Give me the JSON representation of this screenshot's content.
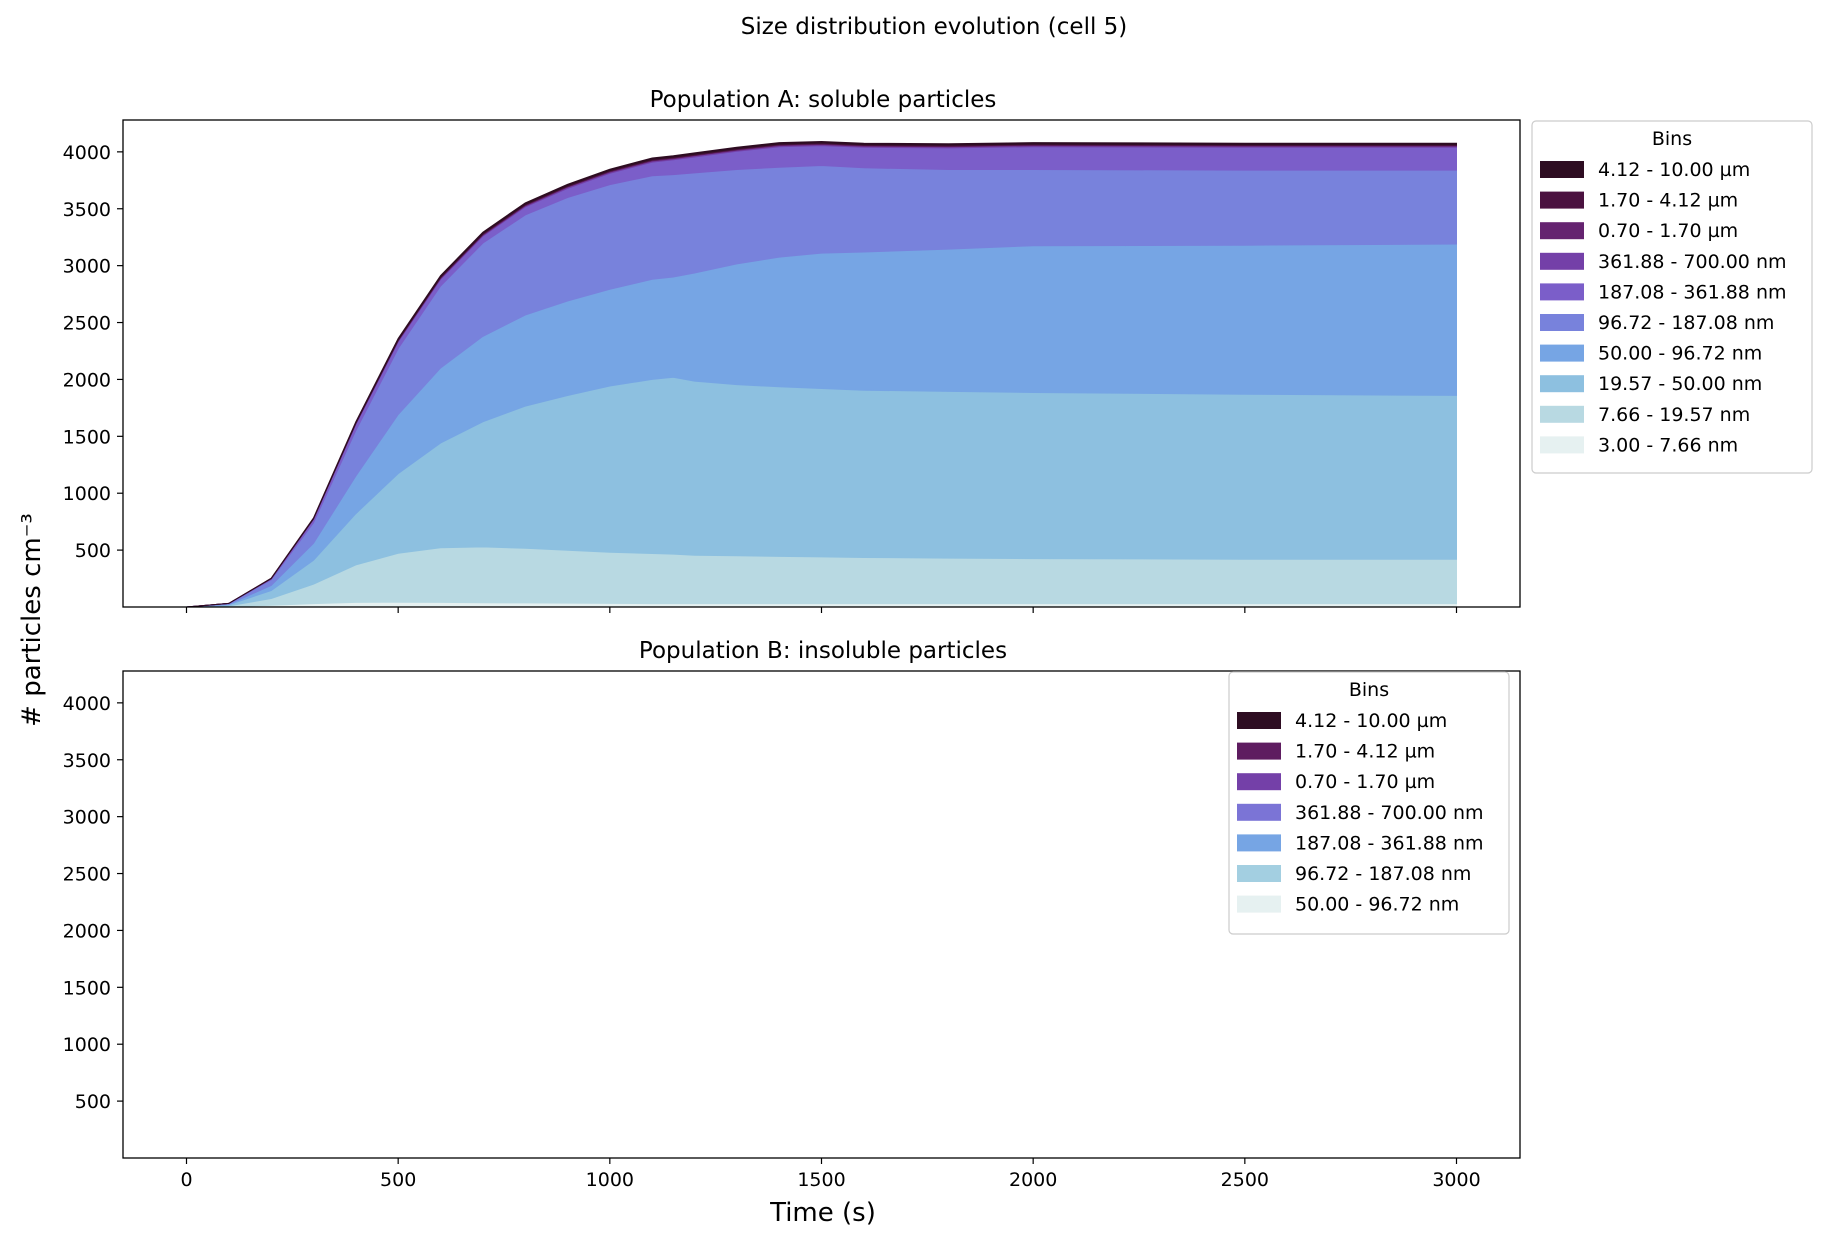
{
  "suptitle": "Size distribution evolution (cell 5)",
  "xlabel": "Time (s)",
  "ylabel": "# particles cm⁻³",
  "chart_data": [
    {
      "type": "area",
      "title": "Population A: soluble particles",
      "xlim": [
        -150,
        3150
      ],
      "ylim": [
        0,
        4280
      ],
      "xticks": [
        0,
        500,
        1000,
        1500,
        2000,
        2500,
        3000
      ],
      "yticks": [
        500,
        1000,
        1500,
        2000,
        2500,
        3000,
        3500,
        4000
      ],
      "show_xtick_labels": false,
      "grid": false,
      "legend": {
        "title": "Bins",
        "placement": "outside-upper-right"
      },
      "x": [
        0,
        100,
        200,
        300,
        400,
        500,
        600,
        700,
        800,
        900,
        1000,
        1100,
        1150,
        1200,
        1300,
        1400,
        1500,
        1600,
        1800,
        2000,
        2500,
        3000
      ],
      "series": [
        {
          "name": "3.00 - 7.66 nm",
          "color": "#e6f1f1",
          "values": [
            0,
            2,
            15,
            30,
            40,
            42,
            40,
            38,
            36,
            34,
            32,
            30,
            30,
            30,
            30,
            30,
            30,
            30,
            30,
            30,
            30,
            30
          ]
        },
        {
          "name": "7.66 - 19.57 nm",
          "color": "#b8d9e2",
          "values": [
            0,
            8,
            60,
            170,
            330,
            430,
            480,
            490,
            480,
            465,
            450,
            440,
            435,
            425,
            420,
            415,
            410,
            405,
            400,
            395,
            390,
            390
          ]
        },
        {
          "name": "19.57 - 50.00 nm",
          "color": "#8dc0e0",
          "values": [
            0,
            10,
            70,
            210,
            450,
            700,
            920,
            1100,
            1250,
            1360,
            1460,
            1530,
            1555,
            1530,
            1505,
            1490,
            1480,
            1470,
            1465,
            1460,
            1450,
            1440
          ]
        },
        {
          "name": "50.00 - 96.72 nm",
          "color": "#76a5e4",
          "values": [
            0,
            5,
            45,
            150,
            330,
            520,
            660,
            750,
            800,
            830,
            850,
            880,
            880,
            950,
            1060,
            1140,
            1190,
            1215,
            1250,
            1290,
            1310,
            1330
          ]
        },
        {
          "name": "96.72 - 187.08 nm",
          "color": "#7882dc",
          "values": [
            0,
            6,
            50,
            180,
            400,
            580,
            720,
            820,
            880,
            910,
            920,
            910,
            900,
            880,
            830,
            790,
            770,
            740,
            700,
            670,
            660,
            650
          ]
        },
        {
          "name": "187.08 - 361.88 nm",
          "color": "#7b5ec9",
          "values": [
            0,
            1,
            8,
            30,
            55,
            60,
            60,
            62,
            70,
            80,
            100,
            120,
            130,
            140,
            160,
            180,
            175,
            180,
            190,
            200,
            200,
            200
          ]
        },
        {
          "name": "361.88 - 700.00 nm",
          "color": "#7440a8",
          "values": [
            0,
            0,
            1,
            3,
            5,
            6,
            7,
            8,
            9,
            10,
            10,
            10,
            10,
            10,
            10,
            10,
            10,
            10,
            10,
            10,
            10,
            10
          ]
        },
        {
          "name": "0.70 - 1.70 µm",
          "color": "#652370",
          "values": [
            0,
            0,
            1,
            2,
            4,
            5,
            6,
            6,
            6,
            6,
            6,
            6,
            6,
            6,
            6,
            6,
            6,
            6,
            6,
            6,
            6,
            6
          ]
        },
        {
          "name": "1.70 - 4.12 µm",
          "color": "#4b1240",
          "values": [
            0,
            0,
            1,
            2,
            4,
            6,
            7,
            8,
            8,
            8,
            8,
            8,
            8,
            8,
            8,
            8,
            8,
            8,
            8,
            8,
            8,
            8
          ]
        },
        {
          "name": "4.12 - 10.00 µm",
          "color": "#2e0d22",
          "values": [
            0,
            0,
            2,
            6,
            10,
            12,
            12,
            12,
            12,
            12,
            12,
            12,
            12,
            12,
            12,
            12,
            12,
            12,
            12,
            12,
            12,
            12
          ]
        }
      ]
    },
    {
      "type": "area",
      "title": "Population B: insoluble particles",
      "xlim": [
        -150,
        3150
      ],
      "ylim": [
        0,
        4280
      ],
      "xticks": [
        0,
        500,
        1000,
        1500,
        2000,
        2500,
        3000
      ],
      "yticks": [
        500,
        1000,
        1500,
        2000,
        2500,
        3000,
        3500,
        4000
      ],
      "show_xtick_labels": true,
      "grid": false,
      "legend": {
        "title": "Bins",
        "placement": "upper-right"
      },
      "x": [
        0,
        3000
      ],
      "series": [
        {
          "name": "50.00 - 96.72 nm",
          "color": "#e6f1f1",
          "values": [
            0,
            0
          ]
        },
        {
          "name": "96.72 - 187.08 nm",
          "color": "#a3cfe1",
          "values": [
            0,
            0
          ]
        },
        {
          "name": "187.08 - 361.88 nm",
          "color": "#76a5e4",
          "values": [
            0,
            0
          ]
        },
        {
          "name": "361.88 - 700.00 nm",
          "color": "#7b74d6",
          "values": [
            0,
            0
          ]
        },
        {
          "name": "0.70 - 1.70 µm",
          "color": "#7440a8",
          "values": [
            0,
            0
          ]
        },
        {
          "name": "1.70 - 4.12 µm",
          "color": "#5e1c60",
          "values": [
            0,
            0
          ]
        },
        {
          "name": "4.12 - 10.00 µm",
          "color": "#2e0d22",
          "values": [
            0,
            0
          ]
        }
      ]
    }
  ]
}
